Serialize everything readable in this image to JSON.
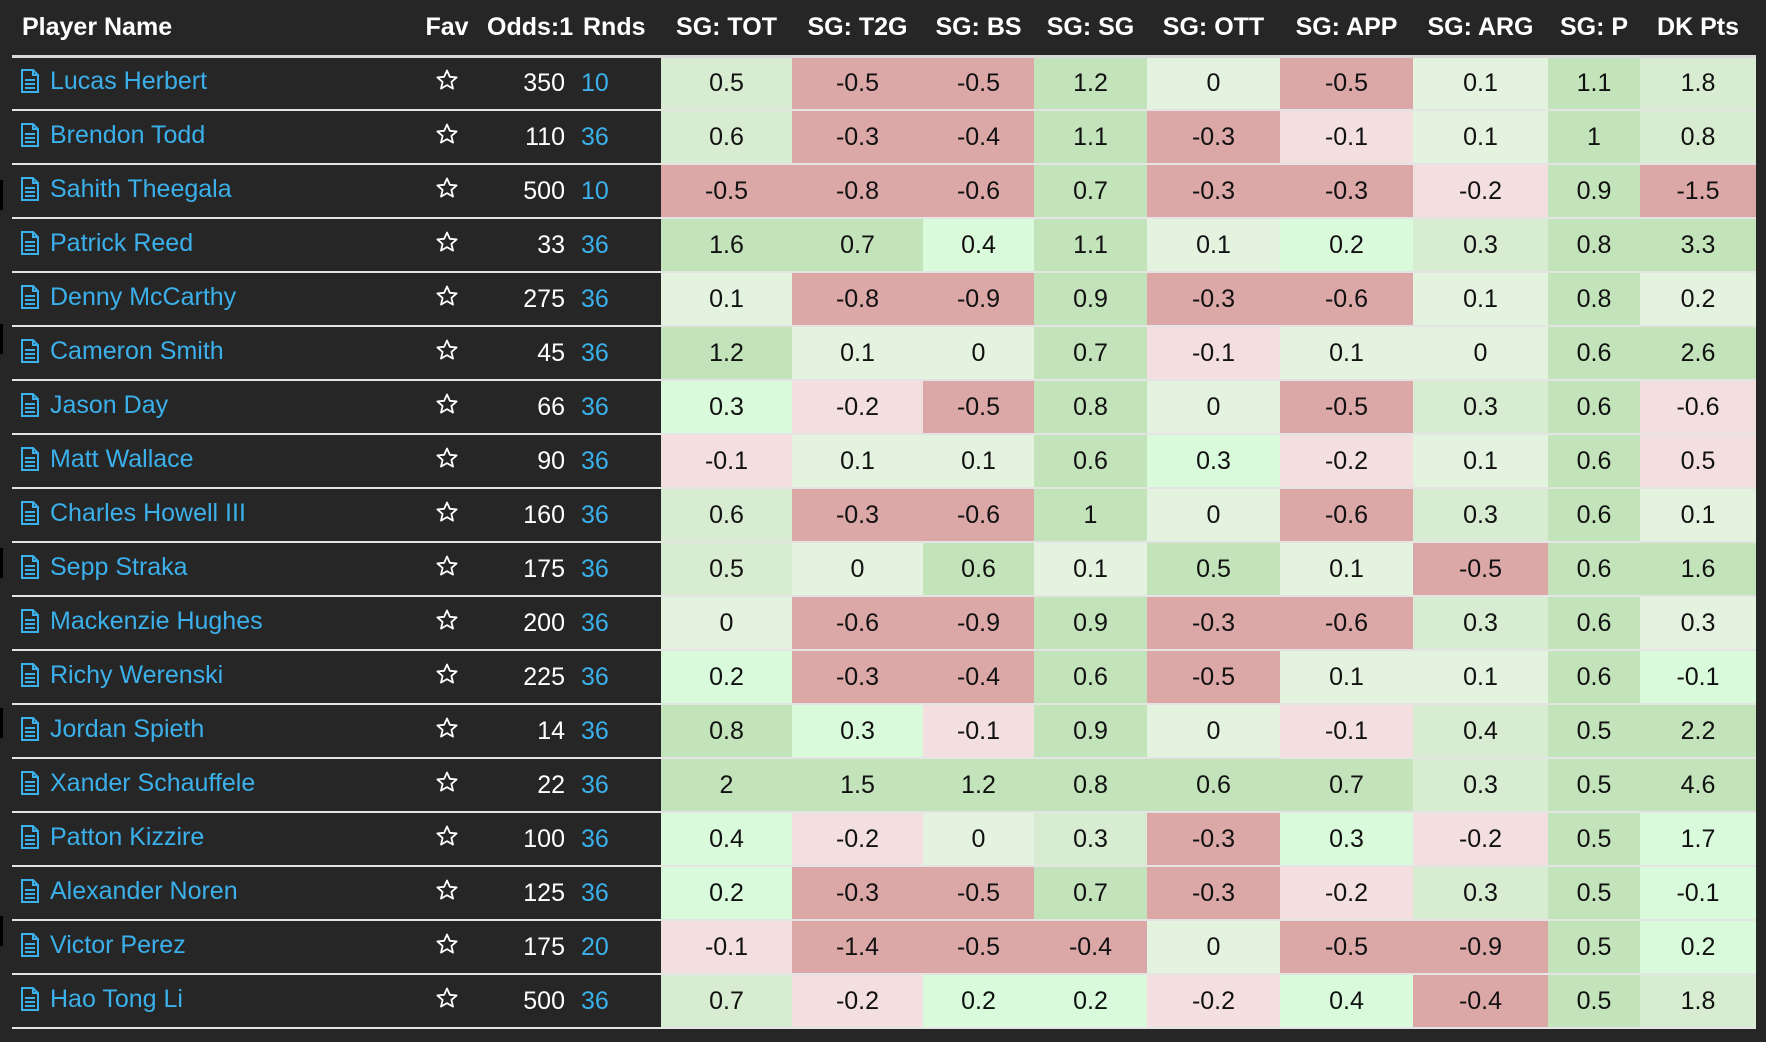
{
  "headers": {
    "name": "Player Name",
    "fav": "Fav",
    "odds": "Odds:1",
    "rnds": "Rnds",
    "sg_tot": "SG: TOT",
    "sg_t2g": "SG: T2G",
    "sg_bs": "SG: BS",
    "sg_sg": "SG: SG",
    "sg_ott": "SG: OTT",
    "sg_app": "SG: APP",
    "sg_arg": "SG: ARG",
    "sg_p": "SG: P",
    "dk": "DK Pts"
  },
  "icons": {
    "doc": "document-icon",
    "fav": "star-outline-icon"
  },
  "colors": {
    "background": "#262626",
    "link": "#3bb0ea",
    "mid_green": "#c3e3ba",
    "light_green": "#d7ecd1",
    "faint_green": "#e4f2e0",
    "bright_mint": "#d9fadb",
    "faint_pink": "#f3dfe0",
    "red": "#dba7a7"
  },
  "rows": [
    {
      "name": "Lucas Herbert",
      "odds": "350",
      "rnds": "10",
      "stats": [
        "0.5",
        "-0.5",
        "-0.5",
        "1.2",
        "0",
        "-0.5",
        "0.1",
        "1.1",
        "1.8"
      ],
      "shades": [
        "b",
        "f",
        "f",
        "a",
        "c",
        "f",
        "c",
        "a",
        "b"
      ]
    },
    {
      "name": "Brendon Todd",
      "odds": "110",
      "rnds": "36",
      "stats": [
        "0.6",
        "-0.3",
        "-0.4",
        "1.1",
        "-0.3",
        "-0.1",
        "0.1",
        "1",
        "0.8"
      ],
      "shades": [
        "b",
        "f",
        "f",
        "a",
        "f",
        "e",
        "c",
        "a",
        "b"
      ]
    },
    {
      "name": "Sahith Theegala",
      "odds": "500",
      "rnds": "10",
      "stats": [
        "-0.5",
        "-0.8",
        "-0.6",
        "0.7",
        "-0.3",
        "-0.3",
        "-0.2",
        "0.9",
        "-1.5"
      ],
      "shades": [
        "f",
        "f",
        "f",
        "a",
        "f",
        "f",
        "e",
        "a",
        "f"
      ]
    },
    {
      "name": "Patrick Reed",
      "odds": "33",
      "rnds": "36",
      "stats": [
        "1.6",
        "0.7",
        "0.4",
        "1.1",
        "0.1",
        "0.2",
        "0.3",
        "0.8",
        "3.3"
      ],
      "shades": [
        "a",
        "a",
        "d",
        "a",
        "c",
        "d",
        "b",
        "a",
        "a"
      ]
    },
    {
      "name": "Denny McCarthy",
      "odds": "275",
      "rnds": "36",
      "stats": [
        "0.1",
        "-0.8",
        "-0.9",
        "0.9",
        "-0.3",
        "-0.6",
        "0.1",
        "0.8",
        "0.2"
      ],
      "shades": [
        "c",
        "f",
        "f",
        "a",
        "f",
        "f",
        "c",
        "a",
        "c"
      ]
    },
    {
      "name": "Cameron Smith",
      "odds": "45",
      "rnds": "36",
      "stats": [
        "1.2",
        "0.1",
        "0",
        "0.7",
        "-0.1",
        "0.1",
        "0",
        "0.6",
        "2.6"
      ],
      "shades": [
        "a",
        "c",
        "c",
        "a",
        "e",
        "c",
        "c",
        "a",
        "a"
      ]
    },
    {
      "name": "Jason Day",
      "odds": "66",
      "rnds": "36",
      "stats": [
        "0.3",
        "-0.2",
        "-0.5",
        "0.8",
        "0",
        "-0.5",
        "0.3",
        "0.6",
        "-0.6"
      ],
      "shades": [
        "d",
        "e",
        "f",
        "a",
        "c",
        "f",
        "b",
        "a",
        "e"
      ]
    },
    {
      "name": "Matt Wallace",
      "odds": "90",
      "rnds": "36",
      "stats": [
        "-0.1",
        "0.1",
        "0.1",
        "0.6",
        "0.3",
        "-0.2",
        "0.1",
        "0.6",
        "0.5"
      ],
      "shades": [
        "e",
        "c",
        "c",
        "a",
        "d",
        "e",
        "c",
        "a",
        "e"
      ]
    },
    {
      "name": "Charles Howell III",
      "odds": "160",
      "rnds": "36",
      "stats": [
        "0.6",
        "-0.3",
        "-0.6",
        "1",
        "0",
        "-0.6",
        "0.3",
        "0.6",
        "0.1"
      ],
      "shades": [
        "b",
        "f",
        "f",
        "a",
        "c",
        "f",
        "b",
        "a",
        "c"
      ]
    },
    {
      "name": "Sepp Straka",
      "odds": "175",
      "rnds": "36",
      "stats": [
        "0.5",
        "0",
        "0.6",
        "0.1",
        "0.5",
        "0.1",
        "-0.5",
        "0.6",
        "1.6"
      ],
      "shades": [
        "b",
        "c",
        "a",
        "c",
        "a",
        "c",
        "f",
        "a",
        "a"
      ]
    },
    {
      "name": "Mackenzie Hughes",
      "odds": "200",
      "rnds": "36",
      "stats": [
        "0",
        "-0.6",
        "-0.9",
        "0.9",
        "-0.3",
        "-0.6",
        "0.3",
        "0.6",
        "0.3"
      ],
      "shades": [
        "c",
        "f",
        "f",
        "a",
        "f",
        "f",
        "b",
        "a",
        "c"
      ]
    },
    {
      "name": "Richy Werenski",
      "odds": "225",
      "rnds": "36",
      "stats": [
        "0.2",
        "-0.3",
        "-0.4",
        "0.6",
        "-0.5",
        "0.1",
        "0.1",
        "0.6",
        "-0.1"
      ],
      "shades": [
        "d",
        "f",
        "f",
        "a",
        "f",
        "c",
        "c",
        "a",
        "d"
      ]
    },
    {
      "name": "Jordan Spieth",
      "odds": "14",
      "rnds": "36",
      "stats": [
        "0.8",
        "0.3",
        "-0.1",
        "0.9",
        "0",
        "-0.1",
        "0.4",
        "0.5",
        "2.2"
      ],
      "shades": [
        "a",
        "d",
        "e",
        "a",
        "c",
        "e",
        "b",
        "a",
        "a"
      ]
    },
    {
      "name": "Xander Schauffele",
      "odds": "22",
      "rnds": "36",
      "stats": [
        "2",
        "1.5",
        "1.2",
        "0.8",
        "0.6",
        "0.7",
        "0.3",
        "0.5",
        "4.6"
      ],
      "shades": [
        "a",
        "a",
        "a",
        "a",
        "a",
        "a",
        "b",
        "a",
        "a"
      ]
    },
    {
      "name": "Patton Kizzire",
      "odds": "100",
      "rnds": "36",
      "stats": [
        "0.4",
        "-0.2",
        "0",
        "0.3",
        "-0.3",
        "0.3",
        "-0.2",
        "0.5",
        "1.7"
      ],
      "shades": [
        "d",
        "e",
        "c",
        "b",
        "f",
        "d",
        "e",
        "a",
        "d"
      ]
    },
    {
      "name": "Alexander Noren",
      "odds": "125",
      "rnds": "36",
      "stats": [
        "0.2",
        "-0.3",
        "-0.5",
        "0.7",
        "-0.3",
        "-0.2",
        "0.3",
        "0.5",
        "-0.1"
      ],
      "shades": [
        "d",
        "f",
        "f",
        "a",
        "f",
        "e",
        "b",
        "a",
        "d"
      ]
    },
    {
      "name": "Victor Perez",
      "odds": "175",
      "rnds": "20",
      "stats": [
        "-0.1",
        "-1.4",
        "-0.5",
        "-0.4",
        "0",
        "-0.5",
        "-0.9",
        "0.5",
        "0.2"
      ],
      "shades": [
        "e",
        "f",
        "f",
        "f",
        "c",
        "f",
        "f",
        "a",
        "d"
      ]
    },
    {
      "name": "Hao Tong Li",
      "odds": "500",
      "rnds": "36",
      "stats": [
        "0.7",
        "-0.2",
        "0.2",
        "0.2",
        "-0.2",
        "0.4",
        "-0.4",
        "0.5",
        "1.8"
      ],
      "shades": [
        "b",
        "e",
        "d",
        "d",
        "e",
        "d",
        "f",
        "a",
        "b"
      ]
    }
  ]
}
